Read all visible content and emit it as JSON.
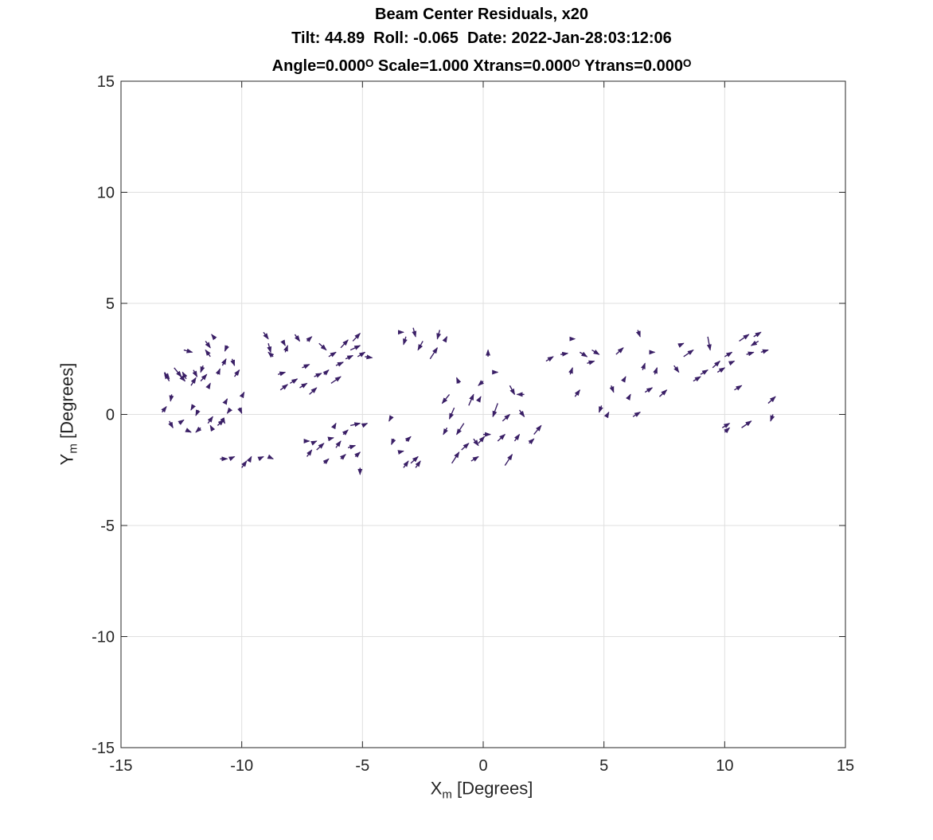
{
  "chart_data": {
    "type": "quiver",
    "title": [
      "Beam Center Residuals, x20",
      "Tilt: 44.89  Roll: -0.065  Date: 2022-Jan-28:03:12:06",
      "Angle=0.000ᴼ Scale=1.000 Xtrans=0.000ᴼ Ytrans=0.000ᴼ"
    ],
    "xlabel": {
      "main": "X",
      "sub": "m",
      "unit": " [Degrees]"
    },
    "ylabel": {
      "main": "Y",
      "sub": "m",
      "unit": " [Degrees]"
    },
    "xlim": [
      -15,
      15
    ],
    "ylim": [
      -15,
      15
    ],
    "xticks": [
      -15,
      -10,
      -5,
      0,
      5,
      10,
      15
    ],
    "yticks": [
      -15,
      -10,
      -5,
      0,
      5,
      10,
      15
    ],
    "tick_labels_x": [
      "-15",
      "-10",
      "-5",
      "0",
      "5",
      "10",
      "15"
    ],
    "tick_labels_y": [
      "-15",
      "-10",
      "-5",
      "0",
      "5",
      "10",
      "15"
    ],
    "grid": true,
    "scale_factor": 20,
    "arrow_color": "#3a1f66",
    "arrows": [
      [
        -13.3,
        0.1,
        0.18,
        0.25
      ],
      [
        -13.2,
        1.9,
        0.2,
        -0.3
      ],
      [
        -13.0,
        1.5,
        -0.2,
        0.35
      ],
      [
        -12.9,
        0.9,
        -0.05,
        -0.3
      ],
      [
        -12.8,
        2.1,
        0.3,
        -0.4
      ],
      [
        -12.6,
        1.8,
        0.25,
        -0.3
      ],
      [
        -12.4,
        2.9,
        0.35,
        -0.1
      ],
      [
        -12.3,
        1.6,
        -0.15,
        0.3
      ],
      [
        -12.1,
        1.3,
        0.2,
        0.35
      ],
      [
        -12.0,
        2.0,
        0.15,
        -0.3
      ],
      [
        -11.8,
        0.2,
        -0.1,
        -0.25
      ],
      [
        -11.7,
        1.5,
        0.25,
        0.3
      ],
      [
        -11.6,
        2.2,
        -0.1,
        -0.3
      ],
      [
        -11.5,
        3.3,
        0.2,
        -0.3
      ],
      [
        -11.4,
        1.2,
        0.1,
        0.2
      ],
      [
        -11.3,
        2.6,
        -0.2,
        0.3
      ],
      [
        -11.1,
        3.4,
        -0.15,
        0.2
      ],
      [
        -11.0,
        1.8,
        0.1,
        0.25
      ],
      [
        -10.8,
        2.2,
        0.15,
        0.3
      ],
      [
        -10.7,
        0.5,
        0.1,
        0.2
      ],
      [
        -10.6,
        3.1,
        -0.1,
        -0.25
      ],
      [
        -10.4,
        2.5,
        0.1,
        -0.3
      ],
      [
        -10.3,
        1.7,
        0.2,
        0.3
      ],
      [
        -10.1,
        0.3,
        0.1,
        -0.25
      ],
      [
        -10.0,
        0.8,
        0.1,
        0.2
      ],
      [
        -13.0,
        -0.3,
        0.15,
        -0.3
      ],
      [
        -12.6,
        -0.4,
        0.2,
        0.15
      ],
      [
        -12.3,
        -0.7,
        0.2,
        -0.1
      ],
      [
        -12.0,
        0.4,
        -0.1,
        -0.2
      ],
      [
        -11.7,
        -0.6,
        -0.2,
        -0.2
      ],
      [
        -11.4,
        -0.4,
        0.2,
        0.3
      ],
      [
        -11.2,
        -0.7,
        -0.1,
        0.2
      ],
      [
        -11.0,
        -0.5,
        0.25,
        0.25
      ],
      [
        -10.8,
        -0.2,
        0.1,
        -0.2
      ],
      [
        -10.5,
        0.2,
        -0.1,
        -0.15
      ],
      [
        -10.9,
        -2.0,
        0.3,
        0.0
      ],
      [
        -10.5,
        -2.0,
        0.2,
        0.1
      ],
      [
        -10.0,
        -2.4,
        0.2,
        0.3
      ],
      [
        -9.7,
        -2.1,
        0.1,
        0.2
      ],
      [
        -9.3,
        -2.0,
        0.2,
        0.1
      ],
      [
        -8.9,
        -1.9,
        0.2,
        -0.1
      ],
      [
        -9.1,
        3.7,
        0.2,
        -0.3
      ],
      [
        -8.9,
        3.2,
        0.1,
        -0.4
      ],
      [
        -8.7,
        2.6,
        -0.2,
        0.2
      ],
      [
        -8.5,
        1.8,
        0.3,
        0.1
      ],
      [
        -8.4,
        1.1,
        0.3,
        0.25
      ],
      [
        -8.3,
        3.3,
        0.1,
        -0.2
      ],
      [
        -8.2,
        2.8,
        0.1,
        0.3
      ],
      [
        -8.0,
        1.4,
        0.3,
        0.2
      ],
      [
        -7.8,
        3.6,
        0.2,
        -0.3
      ],
      [
        -7.6,
        1.2,
        0.3,
        0.2
      ],
      [
        -7.5,
        2.1,
        0.3,
        0.15
      ],
      [
        -7.3,
        3.3,
        0.2,
        0.2
      ],
      [
        -7.2,
        0.9,
        0.3,
        0.3
      ],
      [
        -7.0,
        1.7,
        0.3,
        0.15
      ],
      [
        -6.8,
        3.2,
        0.3,
        -0.3
      ],
      [
        -6.6,
        1.8,
        0.2,
        0.2
      ],
      [
        -6.4,
        2.6,
        0.3,
        0.2
      ],
      [
        -6.3,
        1.4,
        0.4,
        0.3
      ],
      [
        -6.1,
        2.2,
        0.3,
        0.15
      ],
      [
        -5.9,
        3.0,
        0.3,
        0.35
      ],
      [
        -5.7,
        2.5,
        0.3,
        0.15
      ],
      [
        -5.5,
        2.9,
        0.4,
        0.2
      ],
      [
        -5.4,
        3.3,
        0.3,
        0.35
      ],
      [
        -5.2,
        2.6,
        0.3,
        0.2
      ],
      [
        -4.9,
        2.6,
        0.3,
        -0.05
      ],
      [
        -7.4,
        -1.2,
        0.2,
        0.0
      ],
      [
        -7.1,
        -1.3,
        0.2,
        0.1
      ],
      [
        -7.3,
        -1.9,
        0.2,
        0.3
      ],
      [
        -6.9,
        -1.6,
        0.3,
        0.3
      ],
      [
        -6.6,
        -2.2,
        0.2,
        0.2
      ],
      [
        -6.4,
        -1.1,
        0.2,
        0.05
      ],
      [
        -6.1,
        -1.5,
        0.2,
        0.3
      ],
      [
        -6.2,
        -0.6,
        0.1,
        0.2
      ],
      [
        -5.9,
        -2.0,
        0.2,
        0.2
      ],
      [
        -5.8,
        -0.9,
        0.2,
        0.2
      ],
      [
        -5.6,
        -1.5,
        0.3,
        0.1
      ],
      [
        -5.5,
        -0.5,
        0.4,
        0.1
      ],
      [
        -5.3,
        -1.9,
        0.2,
        0.2
      ],
      [
        -5.1,
        -2.4,
        0.0,
        -0.3
      ],
      [
        -5.0,
        -0.5,
        0.2,
        0.1
      ],
      [
        -3.8,
        -0.1,
        -0.1,
        -0.2
      ],
      [
        -3.7,
        -1.1,
        -0.1,
        -0.25
      ],
      [
        -3.5,
        -1.7,
        0.2,
        0.05
      ],
      [
        -3.3,
        -2.4,
        0.2,
        0.3
      ],
      [
        -3.2,
        -1.2,
        0.2,
        0.2
      ],
      [
        -3.0,
        -2.2,
        0.3,
        0.3
      ],
      [
        -2.8,
        -2.4,
        0.2,
        0.3
      ],
      [
        -3.5,
        3.7,
        0.2,
        0.0
      ],
      [
        -3.2,
        3.5,
        -0.1,
        -0.35
      ],
      [
        -2.9,
        3.9,
        0.1,
        -0.4
      ],
      [
        -2.5,
        3.3,
        -0.2,
        -0.4
      ],
      [
        -2.2,
        2.5,
        0.3,
        0.5
      ],
      [
        -1.8,
        3.8,
        -0.1,
        -0.4
      ],
      [
        -1.6,
        3.3,
        0.1,
        0.2
      ],
      [
        -1.4,
        0.9,
        -0.3,
        -0.4
      ],
      [
        -1.2,
        0.3,
        -0.2,
        -0.5
      ],
      [
        -1.0,
        1.4,
        -0.1,
        0.25
      ],
      [
        -0.8,
        -0.4,
        -0.3,
        -0.5
      ],
      [
        -0.6,
        0.4,
        0.2,
        0.5
      ],
      [
        -0.4,
        -1.1,
        0.2,
        -0.3
      ],
      [
        -0.2,
        0.6,
        0.1,
        0.2
      ],
      [
        0.0,
        1.5,
        -0.2,
        -0.2
      ],
      [
        0.2,
        2.6,
        0.0,
        0.3
      ],
      [
        -1.5,
        -0.6,
        -0.15,
        -0.3
      ],
      [
        -1.3,
        -2.2,
        0.3,
        0.5
      ],
      [
        -0.9,
        -1.6,
        0.3,
        0.3
      ],
      [
        -0.5,
        -2.1,
        0.3,
        0.2
      ],
      [
        -0.2,
        -1.3,
        0.25,
        0.3
      ],
      [
        0.0,
        -0.9,
        0.3,
        0.0
      ],
      [
        0.6,
        0.5,
        -0.2,
        -0.6
      ],
      [
        0.8,
        -0.3,
        0.3,
        0.3
      ],
      [
        0.9,
        -2.3,
        0.3,
        0.5
      ],
      [
        1.1,
        1.3,
        0.2,
        -0.4
      ],
      [
        1.3,
        -1.2,
        0.2,
        0.3
      ],
      [
        1.5,
        0.2,
        0.2,
        -0.3
      ],
      [
        1.7,
        0.9,
        -0.3,
        0.0
      ],
      [
        1.9,
        -1.3,
        0.2,
        0.2
      ],
      [
        2.1,
        -0.9,
        0.3,
        0.4
      ],
      [
        0.4,
        1.9,
        0.2,
        0.0
      ],
      [
        0.6,
        -1.2,
        0.3,
        0.3
      ],
      [
        2.6,
        2.4,
        0.3,
        0.2
      ],
      [
        3.2,
        2.7,
        0.3,
        0.05
      ],
      [
        3.6,
        1.8,
        0.1,
        0.3
      ],
      [
        3.8,
        0.8,
        0.2,
        0.3
      ],
      [
        4.0,
        2.8,
        0.3,
        -0.2
      ],
      [
        4.3,
        2.3,
        0.3,
        0.1
      ],
      [
        4.5,
        2.9,
        0.3,
        -0.2
      ],
      [
        4.9,
        0.4,
        -0.1,
        -0.3
      ],
      [
        5.1,
        -0.1,
        0.1,
        0.2
      ],
      [
        5.3,
        1.3,
        0.1,
        -0.3
      ],
      [
        5.5,
        2.7,
        0.3,
        0.3
      ],
      [
        5.8,
        1.5,
        0.1,
        0.2
      ],
      [
        6.0,
        0.7,
        0.1,
        0.2
      ],
      [
        6.2,
        -0.1,
        0.3,
        0.2
      ],
      [
        6.4,
        3.8,
        0.1,
        -0.3
      ],
      [
        6.6,
        2.0,
        0.1,
        0.3
      ],
      [
        6.7,
        1.0,
        0.3,
        0.2
      ],
      [
        6.9,
        2.8,
        0.2,
        0.0
      ],
      [
        7.1,
        1.8,
        0.1,
        0.3
      ],
      [
        7.3,
        0.8,
        0.3,
        0.3
      ],
      [
        3.8,
        3.4,
        0.0,
        0.0
      ],
      [
        7.9,
        2.2,
        0.2,
        -0.3
      ],
      [
        8.1,
        3.1,
        0.2,
        0.1
      ],
      [
        8.3,
        2.6,
        0.4,
        0.3
      ],
      [
        8.7,
        1.5,
        0.3,
        0.2
      ],
      [
        9.0,
        1.8,
        0.3,
        0.2
      ],
      [
        9.3,
        3.5,
        0.1,
        -0.6
      ],
      [
        9.5,
        2.1,
        0.3,
        0.3
      ],
      [
        9.7,
        1.9,
        0.3,
        0.2
      ],
      [
        10.0,
        2.6,
        0.3,
        0.2
      ],
      [
        10.2,
        2.3,
        0.2,
        0.1
      ],
      [
        10.4,
        1.1,
        0.3,
        0.2
      ],
      [
        10.6,
        3.3,
        0.4,
        0.3
      ],
      [
        10.9,
        2.7,
        0.3,
        0.1
      ],
      [
        11.2,
        3.5,
        0.3,
        0.2
      ],
      [
        11.4,
        3.3,
        -0.3,
        -0.2
      ],
      [
        11.5,
        2.8,
        0.3,
        0.1
      ],
      [
        11.8,
        0.5,
        0.3,
        0.3
      ],
      [
        12.0,
        0.0,
        -0.1,
        -0.3
      ],
      [
        10.0,
        -0.8,
        0.2,
        0.2
      ],
      [
        10.7,
        -0.6,
        0.4,
        0.3
      ],
      [
        9.9,
        -0.6,
        0.3,
        0.2
      ]
    ]
  }
}
